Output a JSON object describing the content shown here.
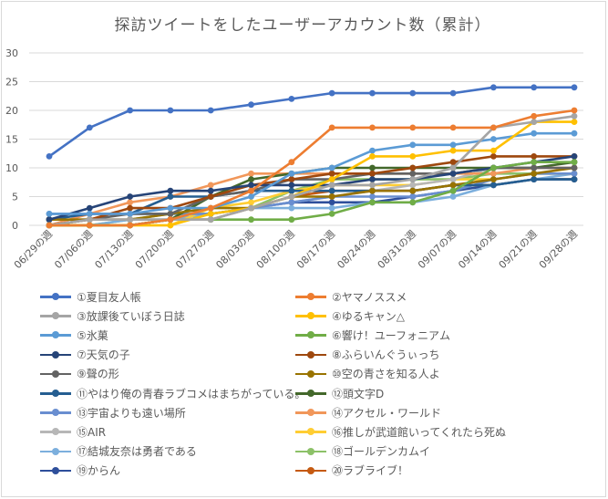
{
  "chart_data": {
    "type": "line",
    "title": "探訪ツイートをしたユーザーアカウント数（累計）",
    "xlabel": "",
    "ylabel": "",
    "ylim": [
      0,
      30
    ],
    "yticks": [
      0,
      5,
      10,
      15,
      20,
      25,
      30
    ],
    "grid": true,
    "legend_position": "bottom",
    "categories": [
      "06/29の週",
      "07/06の週",
      "07/13の週",
      "07/20の週",
      "07/27の週",
      "08/03の週",
      "08/10の週",
      "08/17の週",
      "08/24の週",
      "08/31の週",
      "09/07の週",
      "09/14の週",
      "09/21の週",
      "09/28の週"
    ],
    "series": [
      {
        "name": "①夏目友人帳",
        "color": "#4472c4",
        "values": [
          12,
          17,
          20,
          20,
          20,
          21,
          22,
          23,
          23,
          23,
          23,
          24,
          24,
          24
        ]
      },
      {
        "name": "②ヤマノススメ",
        "color": "#ed7d31",
        "values": [
          0,
          0,
          0,
          1,
          3,
          6,
          11,
          17,
          17,
          17,
          17,
          17,
          19,
          20
        ]
      },
      {
        "name": "③放課後ていぼう日誌",
        "color": "#a5a5a5",
        "values": [
          0,
          1,
          1,
          1,
          1,
          3,
          5,
          7,
          7,
          8,
          10,
          17,
          18,
          19
        ]
      },
      {
        "name": "④ゆるキャン△",
        "color": "#ffc000",
        "values": [
          0,
          0,
          0,
          0,
          2,
          3,
          5,
          8,
          12,
          12,
          13,
          13,
          18,
          18
        ]
      },
      {
        "name": "⑤氷菓",
        "color": "#5b9bd5",
        "values": [
          2,
          2,
          2,
          3,
          3,
          5,
          9,
          10,
          13,
          14,
          14,
          15,
          16,
          16
        ]
      },
      {
        "name": "⑥響け！ユーフォニアム",
        "color": "#70ad47",
        "values": [
          0,
          0,
          0,
          1,
          1,
          1,
          1,
          2,
          4,
          4,
          6,
          10,
          11,
          11
        ]
      },
      {
        "name": "⑦天気の子",
        "color": "#264478",
        "values": [
          1,
          3,
          5,
          6,
          6,
          7,
          7,
          7,
          8,
          8,
          9,
          10,
          11,
          12
        ]
      },
      {
        "name": "⑧ふらいんぐうぃっち",
        "color": "#9e480e",
        "values": [
          0,
          1,
          3,
          3,
          5,
          7,
          8,
          9,
          9,
          10,
          11,
          12,
          12,
          12
        ]
      },
      {
        "name": "⑨聲の形",
        "color": "#636363",
        "values": [
          0,
          1,
          2,
          2,
          5,
          6,
          8,
          8,
          9,
          9,
          9,
          10,
          10,
          10
        ]
      },
      {
        "name": "⑩空の青さを知る人よ",
        "color": "#997300",
        "values": [
          1,
          1,
          1,
          2,
          3,
          3,
          5,
          5,
          6,
          6,
          7,
          8,
          9,
          10
        ]
      },
      {
        "name": "⑪やはり俺の青春ラブコメはまちがっている。",
        "color": "#255e91",
        "values": [
          1,
          2,
          2,
          5,
          5,
          6,
          6,
          6,
          6,
          6,
          7,
          7,
          8,
          8
        ]
      },
      {
        "name": "⑫頭文字D",
        "color": "#43682b",
        "values": [
          0,
          0,
          0,
          1,
          5,
          8,
          9,
          10,
          10,
          10,
          10,
          10,
          10,
          11
        ]
      },
      {
        "name": "⑬宇宙よりも遠い場所",
        "color": "#698ed0",
        "values": [
          2,
          2,
          2,
          2,
          2,
          3,
          4,
          5,
          5,
          5,
          6,
          8,
          9,
          9
        ]
      },
      {
        "name": "⑭アクセル・ワールド",
        "color": "#f1975a",
        "values": [
          0,
          2,
          4,
          5,
          7,
          9,
          9,
          9,
          9,
          9,
          9,
          9,
          10,
          10
        ]
      },
      {
        "name": "⑮AIR",
        "color": "#b7b7b7",
        "values": [
          1,
          1,
          1,
          1,
          1,
          3,
          4,
          5,
          6,
          7,
          8,
          10,
          10,
          10
        ]
      },
      {
        "name": "⑯推しが武道館いってくれたら死ぬ",
        "color": "#ffcd33",
        "values": [
          0,
          0,
          0,
          0,
          3,
          4,
          6,
          7,
          7,
          7,
          8,
          8,
          9,
          9
        ]
      },
      {
        "name": "⑰結城友奈は勇者である",
        "color": "#7cafdd",
        "values": [
          0,
          0,
          1,
          1,
          2,
          3,
          3,
          3,
          4,
          4,
          5,
          7,
          8,
          9
        ]
      },
      {
        "name": "⑱ゴールデンカムイ",
        "color": "#8cc168",
        "values": [
          0,
          0,
          1,
          2,
          2,
          3,
          6,
          8,
          8,
          8,
          8,
          9,
          9,
          9
        ]
      },
      {
        "name": "⑲からん",
        "color": "#2e4f9b",
        "values": [
          0,
          0,
          0,
          1,
          2,
          3,
          4,
          4,
          4,
          5,
          6,
          7,
          8,
          8
        ]
      },
      {
        "name": "⑳ラブライブ！",
        "color": "#c55a11",
        "values": [
          0,
          0,
          0,
          1,
          1,
          3,
          5,
          6,
          6,
          6,
          7,
          7,
          8,
          8
        ]
      }
    ]
  }
}
